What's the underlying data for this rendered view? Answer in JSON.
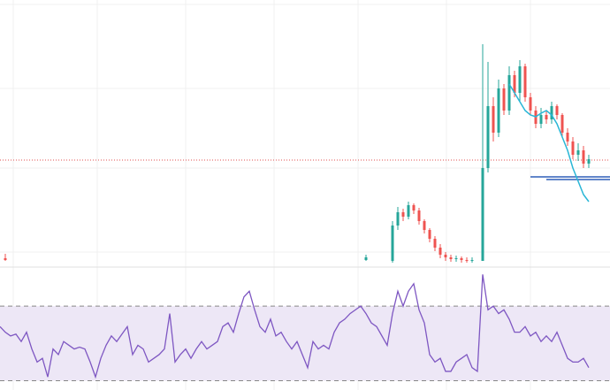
{
  "chart_data": [
    {
      "type": "candlestick",
      "x": [
        1,
        69,
        74,
        75,
        76,
        77,
        78,
        79,
        80,
        81,
        82,
        83,
        84,
        85,
        86,
        87,
        88,
        89,
        91,
        92,
        93,
        94,
        95,
        96,
        97,
        98,
        99,
        100,
        101,
        102,
        103,
        104,
        105,
        106,
        107,
        108,
        109,
        110,
        111
      ],
      "open": [
        8,
        6,
        5,
        45,
        60,
        55,
        68,
        62,
        50,
        40,
        30,
        20,
        12,
        9,
        7,
        8,
        6,
        5,
        5,
        110,
        180,
        150,
        200,
        175,
        215,
        195,
        225,
        190,
        175,
        160,
        170,
        165,
        180,
        170,
        150,
        140,
        125,
        130,
        115
      ],
      "high": [
        13,
        12,
        50,
        66,
        64,
        72,
        70,
        65,
        52,
        42,
        33,
        24,
        15,
        12,
        11,
        10,
        9,
        9,
        250,
        230,
        190,
        210,
        205,
        225,
        220,
        232,
        228,
        195,
        180,
        178,
        175,
        185,
        182,
        172,
        155,
        145,
        138,
        135,
        125
      ],
      "low": [
        5,
        5,
        3,
        40,
        50,
        52,
        58,
        46,
        36,
        26,
        16,
        8,
        5,
        4,
        4,
        3,
        3,
        3,
        5,
        105,
        140,
        145,
        170,
        170,
        190,
        185,
        185,
        170,
        155,
        155,
        160,
        160,
        165,
        145,
        135,
        120,
        118,
        110,
        110
      ],
      "close": [
        6,
        9,
        45,
        60,
        55,
        68,
        62,
        50,
        40,
        30,
        20,
        12,
        9,
        7,
        8,
        6,
        5,
        6,
        110,
        180,
        150,
        200,
        175,
        215,
        195,
        225,
        190,
        175,
        160,
        170,
        165,
        180,
        170,
        150,
        140,
        125,
        130,
        115,
        120
      ],
      "up_color": "#26a69a",
      "down_color": "#ef5350",
      "ma": {
        "color": "#29b6d6",
        "values": [
          null,
          null,
          null,
          null,
          null,
          null,
          null,
          null,
          null,
          null,
          null,
          null,
          null,
          null,
          null,
          null,
          null,
          null,
          null,
          null,
          null,
          null,
          null,
          205,
          195,
          185,
          175,
          170,
          168,
          172,
          175,
          170,
          160,
          145,
          130,
          110,
          95,
          80,
          72
        ]
      },
      "levels": [
        {
          "value": 100,
          "x_start": 100,
          "color": "#2f5fb8",
          "dashed": false
        },
        {
          "value": 97,
          "x_start": 103,
          "color": "#2f5fb8",
          "dashed": false
        },
        {
          "value": 119,
          "x_start": 0,
          "color": "#e05050",
          "dashed": true
        }
      ],
      "xlim": [
        0,
        115
      ],
      "ylim": [
        0,
        260
      ]
    },
    {
      "type": "line",
      "color": "#7e57c2",
      "band_color": "#ede7f6",
      "bands": [
        30,
        70
      ],
      "x": [
        0,
        1,
        2,
        3,
        4,
        5,
        6,
        7,
        8,
        9,
        10,
        11,
        12,
        13,
        14,
        15,
        16,
        17,
        18,
        19,
        20,
        21,
        22,
        23,
        24,
        25,
        26,
        27,
        28,
        29,
        30,
        31,
        32,
        33,
        34,
        35,
        36,
        37,
        38,
        39,
        40,
        41,
        42,
        43,
        44,
        45,
        46,
        47,
        48,
        49,
        50,
        51,
        52,
        53,
        54,
        55,
        56,
        57,
        58,
        59,
        60,
        61,
        62,
        63,
        64,
        65,
        66,
        67,
        68,
        69,
        70,
        71,
        72,
        73,
        74,
        75,
        76,
        77,
        78,
        79,
        80,
        81,
        82,
        83,
        84,
        85,
        86,
        87,
        88,
        89,
        90,
        91,
        92,
        93,
        94,
        95,
        96,
        97,
        98,
        99,
        100,
        101,
        102,
        103,
        104,
        105,
        106,
        107,
        108,
        109,
        110,
        111
      ],
      "values": [
        59,
        56,
        54,
        55,
        51,
        56,
        47,
        40,
        42,
        32,
        47,
        44,
        51,
        49,
        47,
        48,
        47,
        40,
        32,
        42,
        49,
        54,
        51,
        55,
        59,
        44,
        49,
        47,
        40,
        42,
        44,
        47,
        66,
        40,
        44,
        47,
        42,
        47,
        51,
        47,
        49,
        51,
        59,
        61,
        56,
        66,
        75,
        78,
        68,
        59,
        56,
        63,
        54,
        56,
        51,
        47,
        51,
        44,
        37,
        51,
        47,
        49,
        47,
        56,
        61,
        63,
        66,
        68,
        70,
        66,
        61,
        59,
        54,
        49,
        66,
        78,
        70,
        78,
        82,
        68,
        61,
        44,
        40,
        42,
        35,
        35,
        40,
        42,
        44,
        37,
        35,
        87,
        68,
        70,
        66,
        68,
        63,
        56,
        56,
        59,
        54,
        56,
        51,
        54,
        51,
        56,
        49,
        42,
        40,
        40,
        42,
        37
      ],
      "xlim": [
        0,
        115
      ],
      "ylim": [
        25,
        90
      ]
    }
  ]
}
